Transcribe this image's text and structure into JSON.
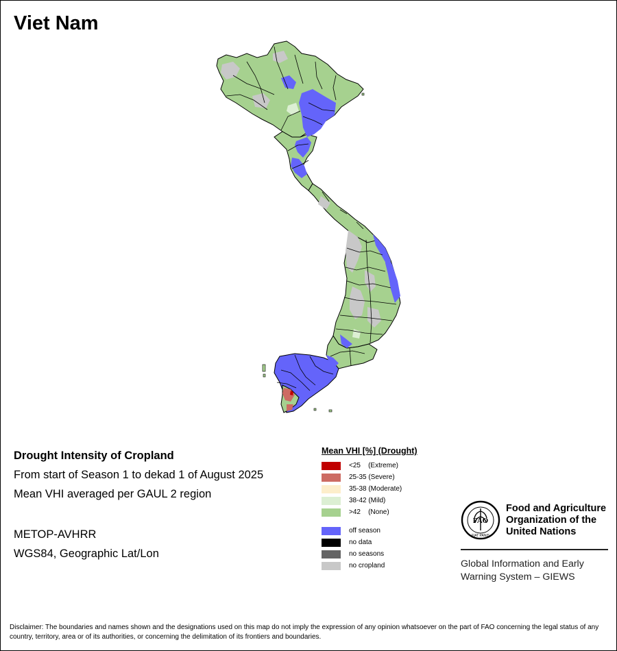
{
  "country": "Viet Nam",
  "info": {
    "heading": "Drought Intensity of Cropland",
    "period": "From start of Season 1 to dekad 1 of August 2025",
    "method": "Mean VHI averaged per GAUL 2 region",
    "sensor": "METOP-AVHRR",
    "projection": "WGS84, Geographic Lat/Lon"
  },
  "legend": {
    "title": "Mean VHI [%] (Drought)",
    "classes": [
      {
        "label": "<25    (Extreme)",
        "color": "#c00000"
      },
      {
        "label": "25-35 (Severe)",
        "color": "#cd6b63"
      },
      {
        "label": "35-38 (Moderate)",
        "color": "#fdeecb"
      },
      {
        "label": "38-42 (Mild)",
        "color": "#dcefd3"
      },
      {
        "label": ">42    (None)",
        "color": "#a6d18f"
      }
    ],
    "other": [
      {
        "label": "off season",
        "color": "#6464fa"
      },
      {
        "label": "no data",
        "color": "#000000"
      },
      {
        "label": "no seasons",
        "color": "#646464"
      },
      {
        "label": "no cropland",
        "color": "#c8c8c8"
      }
    ]
  },
  "fao": {
    "name": "Food and Agriculture Organization of the United Nations",
    "giews": "Global Information and Early Warning System – GIEWS",
    "logo_letters": "FAO",
    "logo_motto": "FIAT PANIS"
  },
  "disclaimer": "Disclaimer: The boundaries and names shown and the designations used on this map do not imply the expression of any opinion whatsoever on the part of FAO concerning the legal status of any country, territory, area or of its authorities, or concerning the delimitation of its frontiers and boundaries."
}
